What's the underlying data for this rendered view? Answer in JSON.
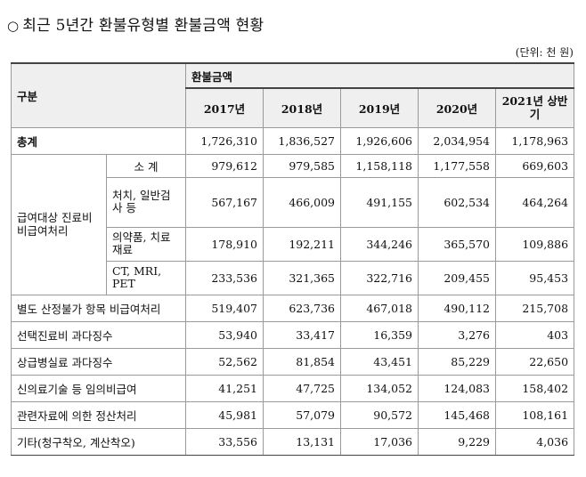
{
  "title": {
    "bullet": "○",
    "text": "최근 5년간 환불유형별 환불금액 현황"
  },
  "unit": "(단위: 천 원)",
  "header": {
    "category": "구분",
    "group": "환불금액",
    "years": [
      "2017년",
      "2018년",
      "2019년",
      "2020년",
      "2021년 상반기"
    ]
  },
  "total": {
    "label": "총계",
    "values": [
      "1,726,310",
      "1,836,527",
      "1,926,606",
      "2,034,954",
      "1,178,963"
    ]
  },
  "group1": {
    "label": "급여대상 진료비 비급여처리",
    "rows": [
      {
        "label": "소 계",
        "values": [
          "979,612",
          "979,585",
          "1,158,118",
          "1,177,558",
          "669,603"
        ]
      },
      {
        "label": "처치, 일반검사 등",
        "values": [
          "567,167",
          "466,009",
          "491,155",
          "602,534",
          "464,264"
        ]
      },
      {
        "label": "의약품, 치료재료",
        "values": [
          "178,910",
          "192,211",
          "344,246",
          "365,570",
          "109,886"
        ]
      },
      {
        "label": "CT, MRI, PET",
        "values": [
          "233,536",
          "321,365",
          "322,716",
          "209,455",
          "95,453"
        ]
      }
    ]
  },
  "rows": [
    {
      "label": "별도 산정불가 항목 비급여처리",
      "values": [
        "519,407",
        "623,736",
        "467,018",
        "490,112",
        "215,708"
      ]
    },
    {
      "label": "선택진료비 과다징수",
      "values": [
        "53,940",
        "33,417",
        "16,359",
        "3,276",
        "403"
      ]
    },
    {
      "label": "상급병실료 과다징수",
      "values": [
        "52,562",
        "81,854",
        "43,451",
        "85,229",
        "22,650"
      ]
    },
    {
      "label": "신의료기술 등 임의비급여",
      "values": [
        "41,251",
        "47,725",
        "134,052",
        "124,083",
        "158,402"
      ]
    },
    {
      "label": "관련자료에 의한 정산처리",
      "values": [
        "45,981",
        "57,079",
        "90,572",
        "145,468",
        "108,161"
      ]
    },
    {
      "label": "기타(청구착오, 계산착오)",
      "values": [
        "33,556",
        "13,131",
        "17,036",
        "9,229",
        "4,036"
      ]
    }
  ]
}
